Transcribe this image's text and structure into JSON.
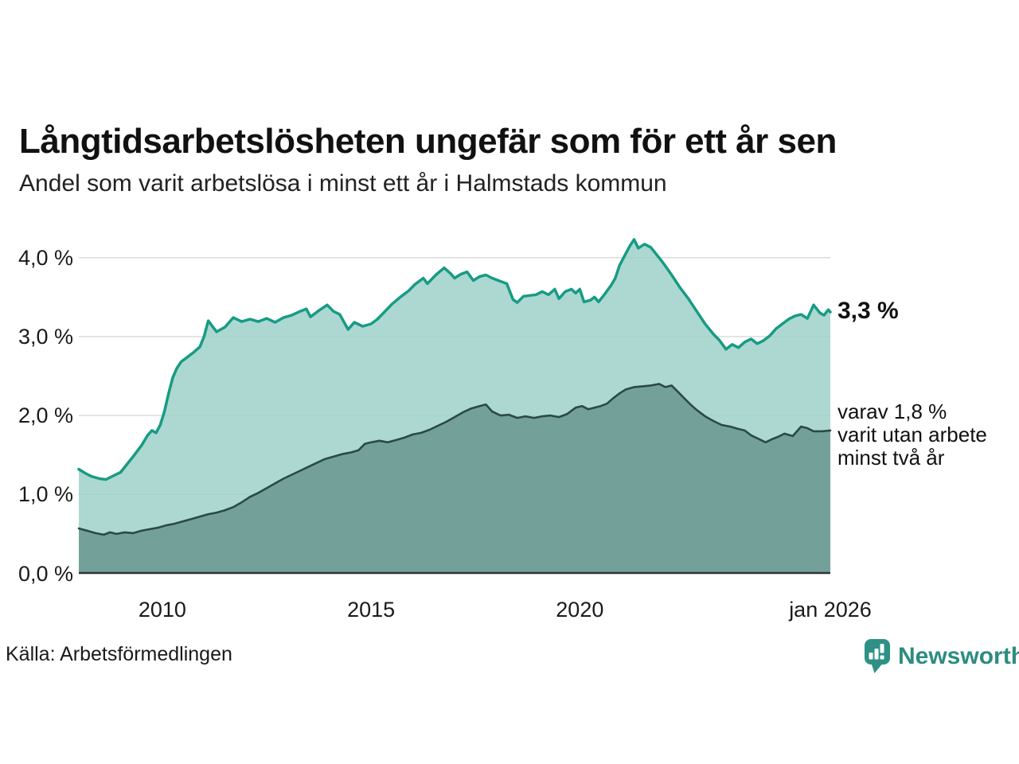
{
  "title": "Långtidsarbetslösheten ungefär som för ett år sen",
  "subtitle": "Andel som varit arbetslösa i minst ett år i Halmstads kommun",
  "source": "Källa: Arbetsförmedlingen",
  "brand": {
    "name": "Newsworthy",
    "color": "#2c8c80",
    "icon": "speech-bubble-bar-chart"
  },
  "annotations": {
    "latest_total": "3,3 %",
    "secondary": "varav 1,8 %\nvarit utan arbete\nminst två år"
  },
  "colors": {
    "upper_line": "#179b84",
    "upper_fill": "#9ed1c9",
    "lower_line": "#2a4a43",
    "lower_fill": "#6f9c95",
    "gridline": "#d8d8d8",
    "axis": "#333333",
    "text": "#1a1a1a"
  },
  "chart_data": {
    "type": "area",
    "title": "Långtidsarbetslösheten ungefär som för ett år sen",
    "subtitle": "Andel som varit arbetslösa i minst ett år i Halmstads kommun",
    "xlabel": "",
    "ylabel": "",
    "xlim": [
      2008,
      2026
    ],
    "ylim": [
      0,
      4.3
    ],
    "grid": true,
    "legend": "annotations-right",
    "x_ticks": [
      {
        "x": 2010,
        "label": "2010"
      },
      {
        "x": 2015,
        "label": "2015"
      },
      {
        "x": 2020,
        "label": "2020"
      },
      {
        "x": 2026,
        "label": "jan 2026"
      }
    ],
    "y_ticks": [
      {
        "v": 0,
        "label": "0,0 %"
      },
      {
        "v": 1,
        "label": "1,0 %"
      },
      {
        "v": 2,
        "label": "2,0 %"
      },
      {
        "v": 3,
        "label": "3,0 %"
      },
      {
        "v": 4,
        "label": "4,0 %"
      }
    ],
    "series": [
      {
        "name": "minst ett år",
        "end_label": "3,3 %",
        "line_color": "#179b84",
        "fill_color": "#9ed1c9",
        "fill_opacity": 0.85,
        "line_width": 3.5,
        "points": [
          [
            2008.0,
            1.32
          ],
          [
            2008.15,
            1.27
          ],
          [
            2008.3,
            1.23
          ],
          [
            2008.5,
            1.2
          ],
          [
            2008.65,
            1.19
          ],
          [
            2008.8,
            1.23
          ],
          [
            2009.0,
            1.28
          ],
          [
            2009.15,
            1.38
          ],
          [
            2009.3,
            1.48
          ],
          [
            2009.5,
            1.62
          ],
          [
            2009.65,
            1.75
          ],
          [
            2009.75,
            1.81
          ],
          [
            2009.85,
            1.78
          ],
          [
            2009.95,
            1.88
          ],
          [
            2010.05,
            2.05
          ],
          [
            2010.15,
            2.28
          ],
          [
            2010.25,
            2.48
          ],
          [
            2010.35,
            2.6
          ],
          [
            2010.45,
            2.68
          ],
          [
            2010.6,
            2.74
          ],
          [
            2010.75,
            2.8
          ],
          [
            2010.9,
            2.87
          ],
          [
            2011.0,
            3.0
          ],
          [
            2011.1,
            3.2
          ],
          [
            2011.3,
            3.06
          ],
          [
            2011.5,
            3.12
          ],
          [
            2011.7,
            3.24
          ],
          [
            2011.9,
            3.19
          ],
          [
            2012.1,
            3.22
          ],
          [
            2012.3,
            3.19
          ],
          [
            2012.5,
            3.23
          ],
          [
            2012.7,
            3.18
          ],
          [
            2012.9,
            3.24
          ],
          [
            2013.1,
            3.27
          ],
          [
            2013.3,
            3.32
          ],
          [
            2013.45,
            3.35
          ],
          [
            2013.55,
            3.25
          ],
          [
            2013.75,
            3.33
          ],
          [
            2013.95,
            3.4
          ],
          [
            2014.1,
            3.32
          ],
          [
            2014.25,
            3.28
          ],
          [
            2014.45,
            3.09
          ],
          [
            2014.6,
            3.18
          ],
          [
            2014.8,
            3.13
          ],
          [
            2015.0,
            3.16
          ],
          [
            2015.15,
            3.22
          ],
          [
            2015.3,
            3.3
          ],
          [
            2015.5,
            3.41
          ],
          [
            2015.7,
            3.5
          ],
          [
            2015.9,
            3.58
          ],
          [
            2016.05,
            3.66
          ],
          [
            2016.25,
            3.74
          ],
          [
            2016.35,
            3.67
          ],
          [
            2016.55,
            3.78
          ],
          [
            2016.75,
            3.87
          ],
          [
            2016.9,
            3.8
          ],
          [
            2017.0,
            3.74
          ],
          [
            2017.15,
            3.79
          ],
          [
            2017.3,
            3.82
          ],
          [
            2017.45,
            3.71
          ],
          [
            2017.6,
            3.76
          ],
          [
            2017.75,
            3.78
          ],
          [
            2017.9,
            3.74
          ],
          [
            2018.1,
            3.7
          ],
          [
            2018.25,
            3.67
          ],
          [
            2018.4,
            3.47
          ],
          [
            2018.5,
            3.43
          ],
          [
            2018.65,
            3.51
          ],
          [
            2018.8,
            3.52
          ],
          [
            2018.95,
            3.53
          ],
          [
            2019.1,
            3.57
          ],
          [
            2019.25,
            3.53
          ],
          [
            2019.4,
            3.6
          ],
          [
            2019.5,
            3.48
          ],
          [
            2019.65,
            3.57
          ],
          [
            2019.8,
            3.6
          ],
          [
            2019.9,
            3.55
          ],
          [
            2020.0,
            3.6
          ],
          [
            2020.1,
            3.44
          ],
          [
            2020.25,
            3.46
          ],
          [
            2020.35,
            3.5
          ],
          [
            2020.45,
            3.44
          ],
          [
            2020.6,
            3.54
          ],
          [
            2020.75,
            3.65
          ],
          [
            2020.85,
            3.74
          ],
          [
            2020.95,
            3.9
          ],
          [
            2021.1,
            4.05
          ],
          [
            2021.2,
            4.15
          ],
          [
            2021.3,
            4.23
          ],
          [
            2021.4,
            4.12
          ],
          [
            2021.55,
            4.17
          ],
          [
            2021.7,
            4.13
          ],
          [
            2021.85,
            4.03
          ],
          [
            2022.0,
            3.93
          ],
          [
            2022.2,
            3.78
          ],
          [
            2022.4,
            3.62
          ],
          [
            2022.6,
            3.48
          ],
          [
            2022.8,
            3.32
          ],
          [
            2023.0,
            3.16
          ],
          [
            2023.2,
            3.03
          ],
          [
            2023.35,
            2.95
          ],
          [
            2023.5,
            2.84
          ],
          [
            2023.65,
            2.9
          ],
          [
            2023.8,
            2.86
          ],
          [
            2023.95,
            2.93
          ],
          [
            2024.1,
            2.97
          ],
          [
            2024.25,
            2.91
          ],
          [
            2024.4,
            2.95
          ],
          [
            2024.55,
            3.01
          ],
          [
            2024.7,
            3.1
          ],
          [
            2024.85,
            3.16
          ],
          [
            2025.0,
            3.22
          ],
          [
            2025.15,
            3.26
          ],
          [
            2025.3,
            3.28
          ],
          [
            2025.45,
            3.23
          ],
          [
            2025.6,
            3.4
          ],
          [
            2025.75,
            3.3
          ],
          [
            2025.85,
            3.27
          ],
          [
            2025.95,
            3.34
          ],
          [
            2026.0,
            3.31
          ]
        ]
      },
      {
        "name": "minst två år",
        "end_label": "varav 1,8 % varit utan arbete minst två år",
        "line_color": "#2a4a43",
        "fill_color": "#6f9c95",
        "fill_opacity": 0.93,
        "line_width": 2.6,
        "points": [
          [
            2008.0,
            0.57
          ],
          [
            2008.2,
            0.54
          ],
          [
            2008.4,
            0.51
          ],
          [
            2008.6,
            0.49
          ],
          [
            2008.75,
            0.52
          ],
          [
            2008.9,
            0.5
          ],
          [
            2009.1,
            0.52
          ],
          [
            2009.3,
            0.51
          ],
          [
            2009.5,
            0.54
          ],
          [
            2009.7,
            0.56
          ],
          [
            2009.9,
            0.58
          ],
          [
            2010.1,
            0.61
          ],
          [
            2010.3,
            0.63
          ],
          [
            2010.5,
            0.66
          ],
          [
            2010.7,
            0.69
          ],
          [
            2010.9,
            0.72
          ],
          [
            2011.1,
            0.75
          ],
          [
            2011.3,
            0.77
          ],
          [
            2011.5,
            0.8
          ],
          [
            2011.7,
            0.84
          ],
          [
            2011.9,
            0.9
          ],
          [
            2012.1,
            0.97
          ],
          [
            2012.3,
            1.02
          ],
          [
            2012.5,
            1.08
          ],
          [
            2012.7,
            1.14
          ],
          [
            2012.9,
            1.2
          ],
          [
            2013.1,
            1.25
          ],
          [
            2013.3,
            1.3
          ],
          [
            2013.5,
            1.35
          ],
          [
            2013.7,
            1.4
          ],
          [
            2013.9,
            1.45
          ],
          [
            2014.1,
            1.48
          ],
          [
            2014.3,
            1.51
          ],
          [
            2014.5,
            1.53
          ],
          [
            2014.7,
            1.56
          ],
          [
            2014.85,
            1.64
          ],
          [
            2015.0,
            1.66
          ],
          [
            2015.2,
            1.68
          ],
          [
            2015.4,
            1.66
          ],
          [
            2015.6,
            1.69
          ],
          [
            2015.8,
            1.72
          ],
          [
            2016.0,
            1.76
          ],
          [
            2016.2,
            1.78
          ],
          [
            2016.4,
            1.82
          ],
          [
            2016.6,
            1.87
          ],
          [
            2016.8,
            1.92
          ],
          [
            2017.0,
            1.98
          ],
          [
            2017.2,
            2.04
          ],
          [
            2017.4,
            2.09
          ],
          [
            2017.6,
            2.12
          ],
          [
            2017.75,
            2.14
          ],
          [
            2017.9,
            2.05
          ],
          [
            2018.1,
            2.0
          ],
          [
            2018.3,
            2.01
          ],
          [
            2018.5,
            1.97
          ],
          [
            2018.7,
            1.99
          ],
          [
            2018.9,
            1.97
          ],
          [
            2019.1,
            1.99
          ],
          [
            2019.3,
            2.0
          ],
          [
            2019.5,
            1.98
          ],
          [
            2019.7,
            2.02
          ],
          [
            2019.9,
            2.1
          ],
          [
            2020.05,
            2.12
          ],
          [
            2020.2,
            2.08
          ],
          [
            2020.35,
            2.1
          ],
          [
            2020.5,
            2.12
          ],
          [
            2020.65,
            2.15
          ],
          [
            2020.8,
            2.22
          ],
          [
            2020.95,
            2.28
          ],
          [
            2021.1,
            2.33
          ],
          [
            2021.3,
            2.36
          ],
          [
            2021.5,
            2.37
          ],
          [
            2021.7,
            2.38
          ],
          [
            2021.9,
            2.4
          ],
          [
            2022.05,
            2.36
          ],
          [
            2022.2,
            2.38
          ],
          [
            2022.35,
            2.3
          ],
          [
            2022.5,
            2.22
          ],
          [
            2022.65,
            2.14
          ],
          [
            2022.8,
            2.07
          ],
          [
            2023.0,
            1.99
          ],
          [
            2023.2,
            1.93
          ],
          [
            2023.4,
            1.88
          ],
          [
            2023.6,
            1.86
          ],
          [
            2023.8,
            1.83
          ],
          [
            2023.95,
            1.81
          ],
          [
            2024.1,
            1.75
          ],
          [
            2024.3,
            1.7
          ],
          [
            2024.45,
            1.66
          ],
          [
            2024.6,
            1.7
          ],
          [
            2024.75,
            1.73
          ],
          [
            2024.9,
            1.77
          ],
          [
            2025.1,
            1.74
          ],
          [
            2025.3,
            1.86
          ],
          [
            2025.45,
            1.84
          ],
          [
            2025.6,
            1.8
          ],
          [
            2025.8,
            1.8
          ],
          [
            2026.0,
            1.81
          ]
        ]
      }
    ]
  }
}
